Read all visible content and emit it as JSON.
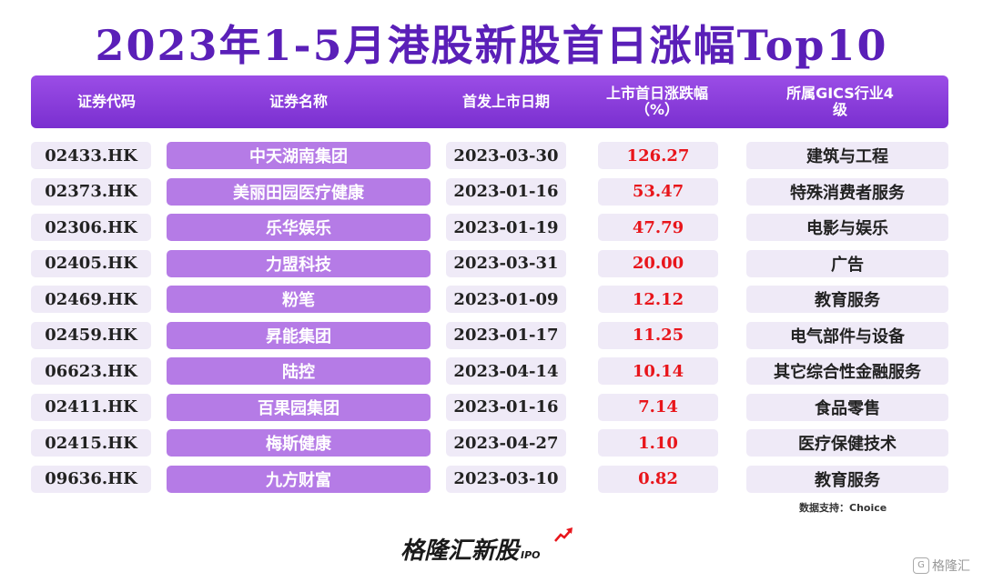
{
  "title": "2023年1-5月港股新股首日涨幅Top10",
  "table": {
    "headers": [
      "证券代码",
      "证券名称",
      "首发上市日期",
      "上市首日涨跌幅（%）",
      "所属GICS行业4级"
    ]
  },
  "chart_data": {
    "type": "table",
    "title": "2023年1-5月港股新股首日涨幅Top10",
    "columns": [
      "证券代码",
      "证券名称",
      "首发上市日期",
      "上市首日涨跌幅（%）",
      "所属GICS行业4级"
    ],
    "rows": [
      [
        "02433.HK",
        "中天湖南集团",
        "2023-03-30",
        "126.27",
        "建筑与工程"
      ],
      [
        "02373.HK",
        "美丽田园医疗健康",
        "2023-01-16",
        "53.47",
        "特殊消费者服务"
      ],
      [
        "02306.HK",
        "乐华娱乐",
        "2023-01-19",
        "47.79",
        "电影与娱乐"
      ],
      [
        "02405.HK",
        "力盟科技",
        "2023-03-31",
        "20.00",
        "广告"
      ],
      [
        "02469.HK",
        "粉笔",
        "2023-01-09",
        "12.12",
        "教育服务"
      ],
      [
        "02459.HK",
        "昇能集团",
        "2023-01-17",
        "11.25",
        "电气部件与设备"
      ],
      [
        "06623.HK",
        "陆控",
        "2023-04-14",
        "10.14",
        "其它综合性金融服务"
      ],
      [
        "02411.HK",
        "百果园集团",
        "2023-01-16",
        "7.14",
        "食品零售"
      ],
      [
        "02415.HK",
        "梅斯健康",
        "2023-04-27",
        "1.10",
        "医疗保健技术"
      ],
      [
        "09636.HK",
        "九方财富",
        "2023-03-10",
        "0.82",
        "教育服务"
      ]
    ]
  },
  "source": "数据支持：Choice",
  "logo": {
    "text": "格隆汇新股",
    "suffix": "IPO",
    "icon": "trend-arrow-icon"
  },
  "watermark": {
    "text": "格隆汇",
    "icon": "g-badge-icon"
  },
  "colors": {
    "title": "#5a1fb8",
    "header_bg": "#8a3fdc",
    "name_bg": "#b57be6",
    "cell_bg": "#efeaf7",
    "gain_text": "#e8151b",
    "logo_arrow": "#e8151b"
  }
}
